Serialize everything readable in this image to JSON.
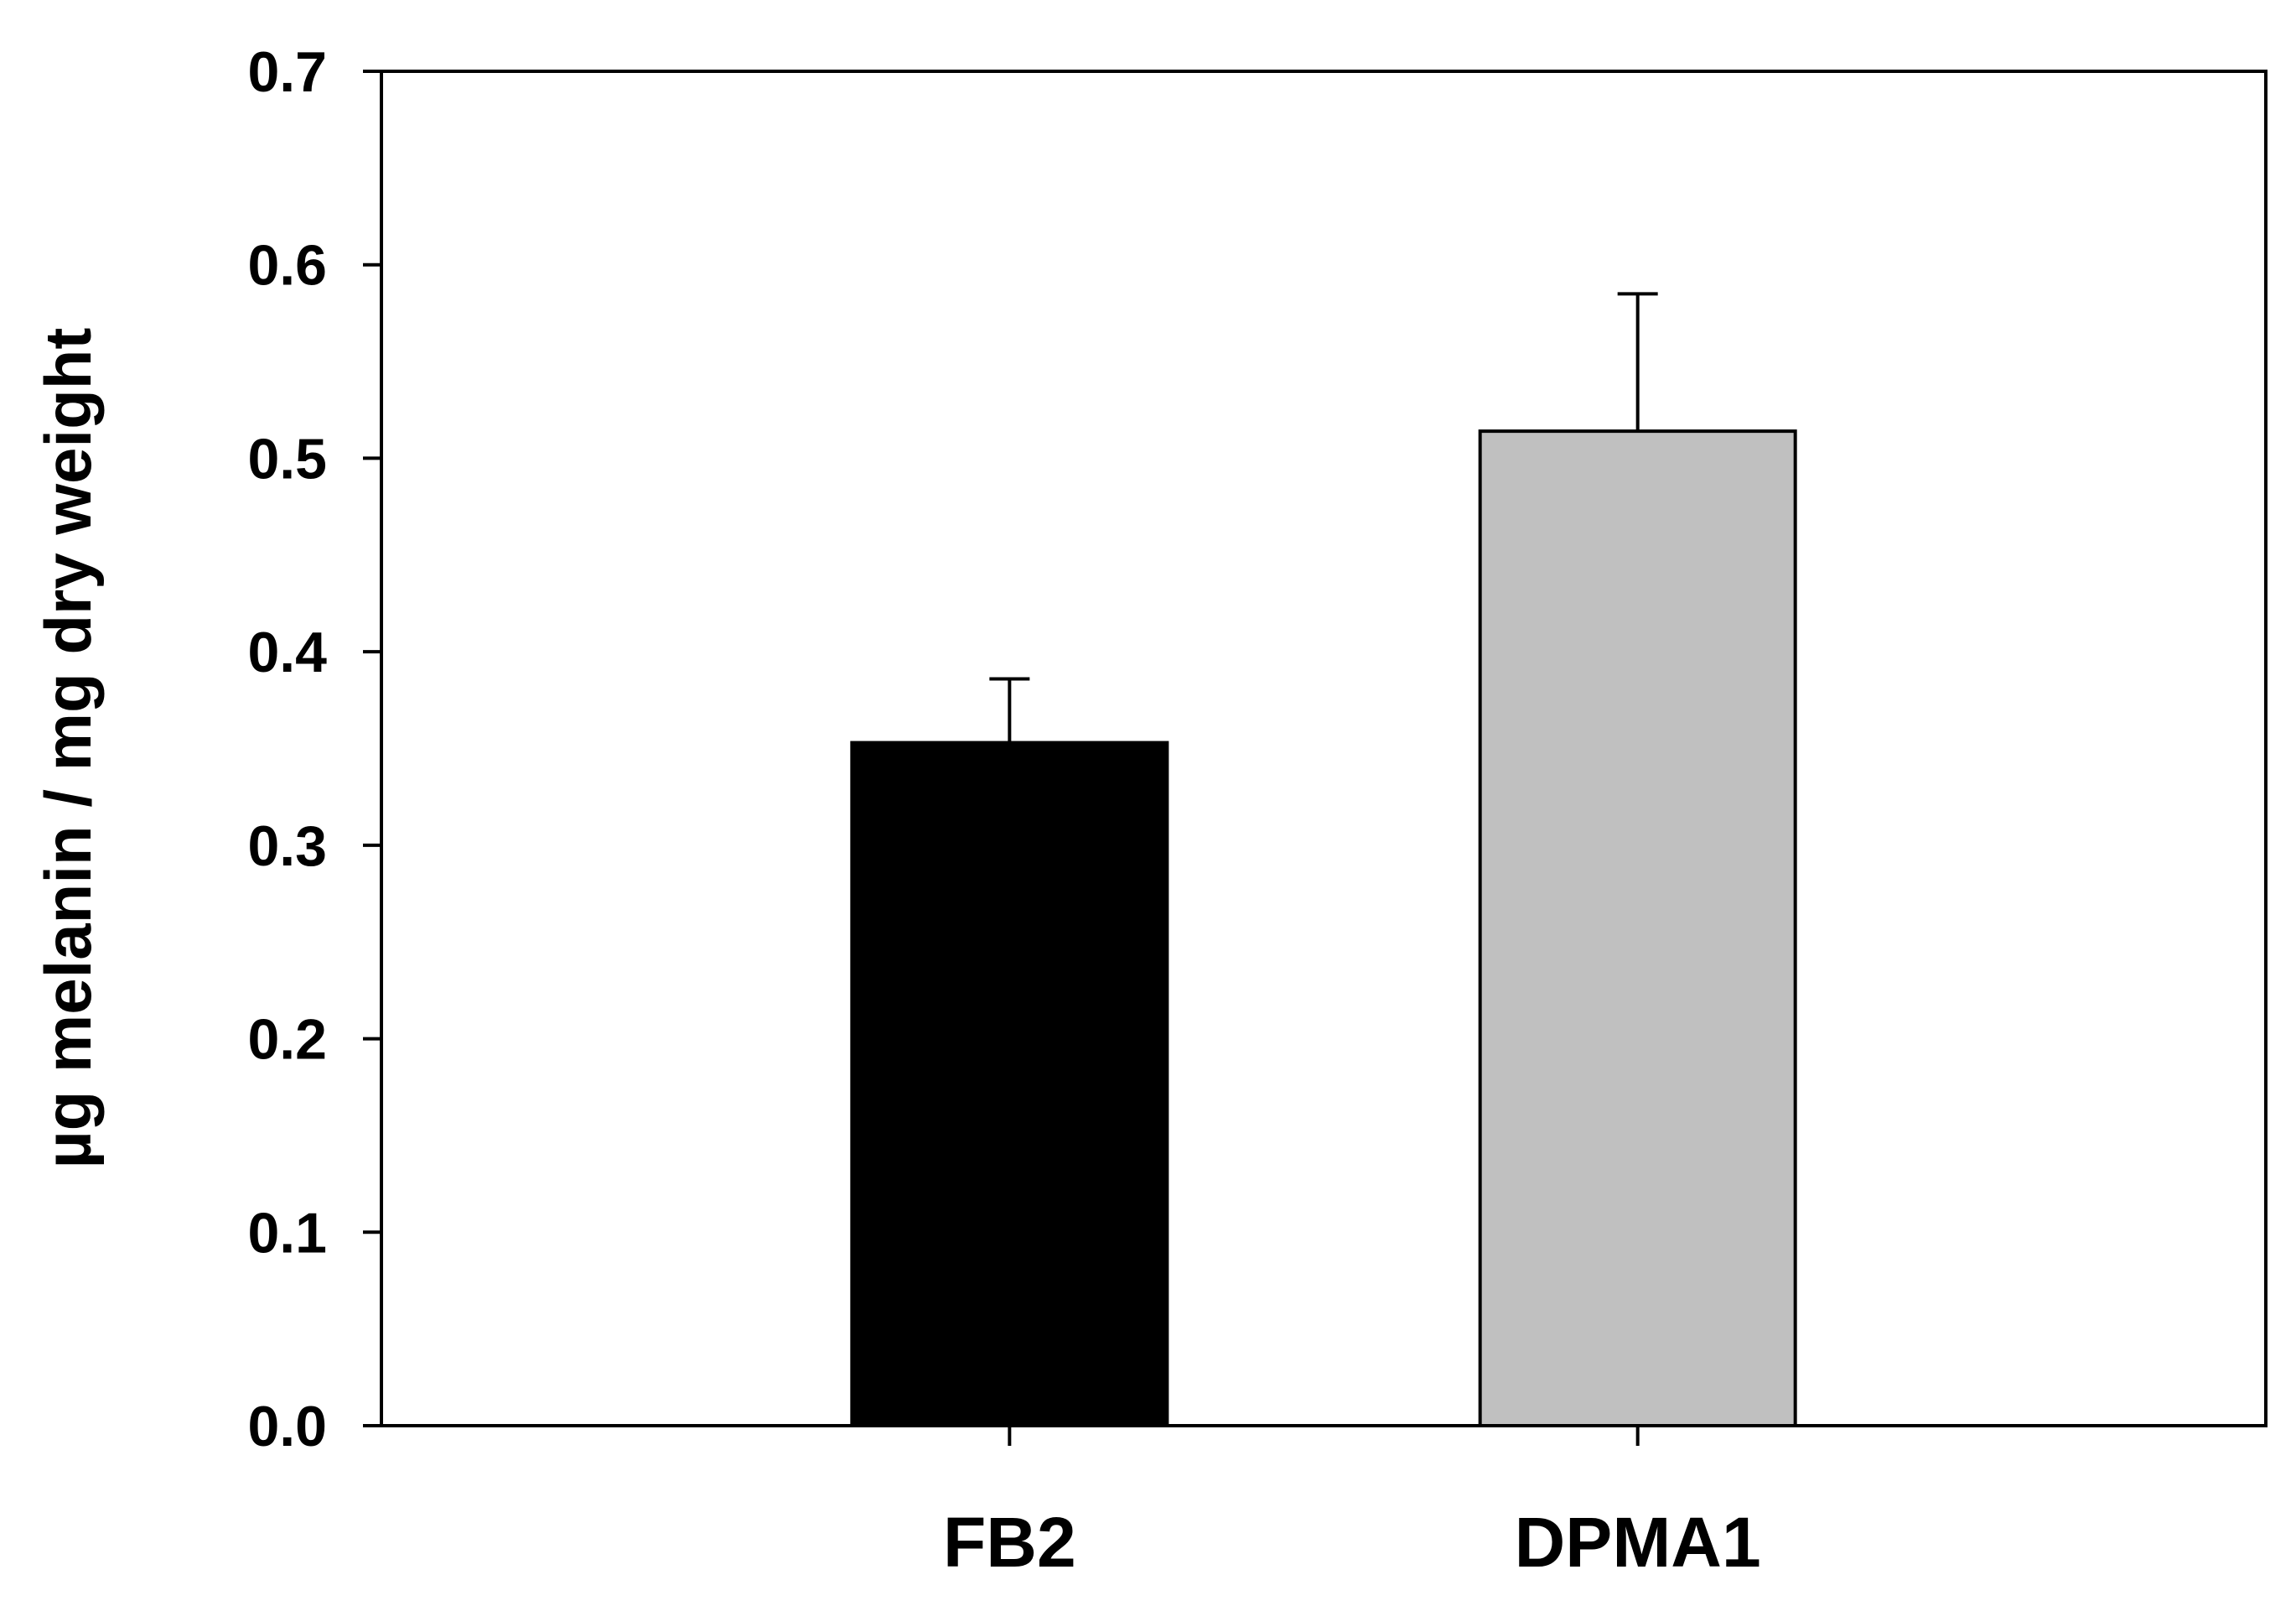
{
  "chart_data": {
    "type": "bar",
    "categories": [
      "FB2",
      "DPMA1"
    ],
    "values": [
      0.353,
      0.514
    ],
    "error_plus": [
      0.033,
      0.071
    ],
    "colors": [
      "#000000",
      "#c0c0c0"
    ],
    "title": "",
    "xlabel": "",
    "ylabel": "µg melanin / mg dry weight",
    "ylim": [
      0,
      0.7
    ],
    "yticks": [
      "0.0",
      "0.1",
      "0.2",
      "0.3",
      "0.4",
      "0.5",
      "0.6",
      "0.7"
    ],
    "grid": false,
    "legend": "none"
  }
}
